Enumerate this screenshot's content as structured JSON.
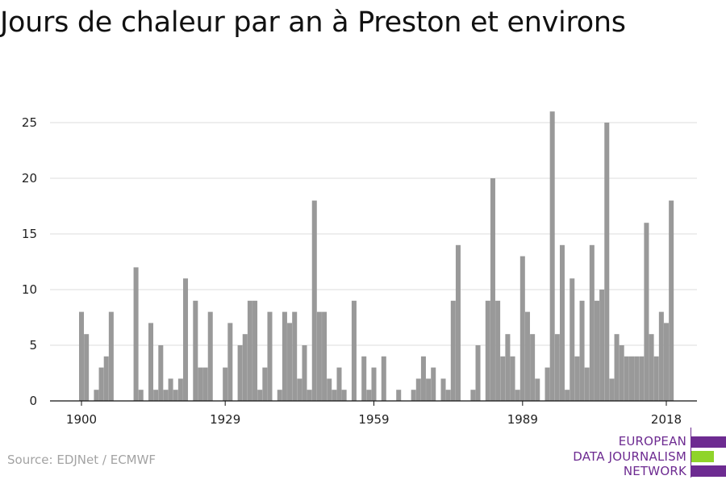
{
  "title": "Jours de chaleur par an à Preston et environs",
  "source": "Source: EDJNet / ECMWF",
  "logo": {
    "lines": [
      "EUROPEAN",
      "DATA JOURNALISM",
      "NETWORK"
    ],
    "colors": {
      "purple": "#6d2b91",
      "green": "#8fd42a"
    }
  },
  "chart_data": {
    "type": "bar",
    "title": "Jours de chaleur par an à Preston et environs",
    "xlabel": "",
    "ylabel": "",
    "x_start": 1900,
    "x_ticks": [
      1900,
      1929,
      1959,
      1989,
      2018
    ],
    "y_ticks": [
      0,
      5,
      10,
      15,
      20,
      25
    ],
    "ylim": [
      0,
      27
    ],
    "grid": true,
    "bar_color": "#999999",
    "values": [
      8,
      6,
      0,
      1,
      3,
      4,
      8,
      0,
      0,
      0,
      0,
      12,
      1,
      0,
      7,
      1,
      5,
      1,
      2,
      1,
      2,
      11,
      0,
      9,
      3,
      3,
      8,
      0,
      0,
      3,
      7,
      0,
      5,
      6,
      9,
      9,
      1,
      3,
      8,
      0,
      1,
      8,
      7,
      8,
      2,
      5,
      1,
      18,
      8,
      8,
      2,
      1,
      3,
      1,
      0,
      9,
      0,
      4,
      1,
      3,
      0,
      4,
      0,
      0,
      1,
      0,
      0,
      1,
      2,
      4,
      2,
      3,
      0,
      2,
      1,
      9,
      14,
      0,
      0,
      1,
      5,
      0,
      9,
      20,
      9,
      4,
      6,
      4,
      1,
      13,
      8,
      6,
      2,
      0,
      3,
      26,
      6,
      14,
      1,
      11,
      4,
      9,
      3,
      14,
      9,
      10,
      25,
      2,
      6,
      5,
      4,
      4,
      4,
      4,
      16,
      6,
      4,
      8,
      7,
      18
    ]
  }
}
